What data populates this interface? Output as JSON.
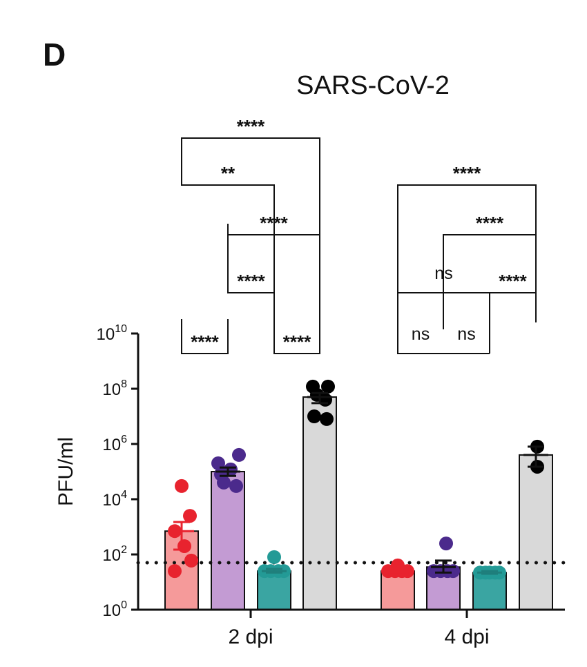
{
  "panel_label": "D",
  "chart_data": {
    "type": "bar",
    "title": "SARS-CoV-2",
    "ylabel": "PFU/ml",
    "xlabel": "",
    "yscale": "log",
    "ylim": [
      1,
      10000000000
    ],
    "y_ticks": [
      {
        "value": 1,
        "base": "10",
        "exp": "0"
      },
      {
        "value": 100,
        "base": "10",
        "exp": "2"
      },
      {
        "value": 10000,
        "base": "10",
        "exp": "4"
      },
      {
        "value": 1000000,
        "base": "10",
        "exp": "6"
      },
      {
        "value": 100000000,
        "base": "10",
        "exp": "8"
      },
      {
        "value": 10000000000,
        "base": "10",
        "exp": "10"
      }
    ],
    "groups": [
      "2 dpi",
      "4 dpi"
    ],
    "limit_of_detection": 50,
    "series_colors": [
      {
        "fill": "#f59a9a",
        "point": "#e8232e"
      },
      {
        "fill": "#c39bd3",
        "point": "#4b2a8c"
      },
      {
        "fill": "#3aa5a2",
        "point": "#239a96"
      },
      {
        "fill": "#d9d9d9",
        "point": "#000000"
      }
    ],
    "bars": [
      {
        "group": 0,
        "series": 0,
        "mean": 700,
        "err_low": 150,
        "err_high": 1500,
        "points": [
          {
            "y": 30000,
            "dx": 0
          },
          {
            "y": 2500,
            "dx": 12
          },
          {
            "y": 700,
            "dx": -10
          },
          {
            "y": 60,
            "dx": 14
          },
          {
            "y": 25,
            "dx": -10
          },
          {
            "y": 200,
            "dx": 4
          }
        ]
      },
      {
        "group": 0,
        "series": 1,
        "mean": 100000,
        "err_low": 70000,
        "err_high": 140000,
        "points": [
          {
            "y": 400000,
            "dx": 16
          },
          {
            "y": 200000,
            "dx": -14
          },
          {
            "y": 120000,
            "dx": 4
          },
          {
            "y": 80000,
            "dx": -10
          },
          {
            "y": 30000,
            "dx": 12
          },
          {
            "y": 40000,
            "dx": -6
          }
        ]
      },
      {
        "group": 0,
        "series": 2,
        "mean": 25,
        "err_low": 22,
        "err_high": 30,
        "points": [
          {
            "y": 80,
            "dx": 0
          },
          {
            "y": 25,
            "dx": -14
          },
          {
            "y": 25,
            "dx": 14
          },
          {
            "y": 25,
            "dx": -5
          },
          {
            "y": 25,
            "dx": 6
          }
        ]
      },
      {
        "group": 0,
        "series": 3,
        "mean": 50000000,
        "err_low": 30000000,
        "err_high": 70000000,
        "points": [
          {
            "y": 120000000,
            "dx": -10
          },
          {
            "y": 120000000,
            "dx": 12
          },
          {
            "y": 60000000,
            "dx": -4
          },
          {
            "y": 40000000,
            "dx": 8
          },
          {
            "y": 10000000,
            "dx": -8
          },
          {
            "y": 8000000,
            "dx": 10
          }
        ]
      },
      {
        "group": 1,
        "series": 0,
        "mean": 25,
        "err_low": 22,
        "err_high": 30,
        "points": [
          {
            "y": 40,
            "dx": 0
          },
          {
            "y": 25,
            "dx": -14
          },
          {
            "y": 25,
            "dx": 14
          },
          {
            "y": 25,
            "dx": -4
          },
          {
            "y": 25,
            "dx": 6
          }
        ]
      },
      {
        "group": 1,
        "series": 1,
        "mean": 35,
        "err_low": 22,
        "err_high": 60,
        "points": [
          {
            "y": 250,
            "dx": 4
          },
          {
            "y": 25,
            "dx": -14
          },
          {
            "y": 25,
            "dx": 14
          },
          {
            "y": 25,
            "dx": -4
          },
          {
            "y": 25,
            "dx": 6
          }
        ]
      },
      {
        "group": 1,
        "series": 2,
        "mean": 22,
        "err_low": 20,
        "err_high": 25,
        "points": [
          {
            "y": 22,
            "dx": -14
          },
          {
            "y": 22,
            "dx": 14
          },
          {
            "y": 22,
            "dx": 0
          },
          {
            "y": 22,
            "dx": -6
          },
          {
            "y": 22,
            "dx": 8
          }
        ]
      },
      {
        "group": 1,
        "series": 3,
        "mean": 400000,
        "err_low": 150000,
        "err_high": 800000,
        "points": [
          {
            "y": 800000,
            "dx": 2
          },
          {
            "y": 150000,
            "dx": 2
          }
        ]
      }
    ],
    "significance": [
      {
        "from": 0,
        "to": 3,
        "label": "****"
      },
      {
        "from": 0,
        "to": 2,
        "label": "**"
      },
      {
        "from": 1,
        "to": 3,
        "label": "****"
      },
      {
        "from": 1,
        "to": 2,
        "label": "****"
      },
      {
        "from": 0,
        "to": 1,
        "label": "****"
      },
      {
        "from": 2,
        "to": 3,
        "label": "****"
      },
      {
        "from": 4,
        "to": 7,
        "label": "****"
      },
      {
        "from": 5,
        "to": 7,
        "label": "****"
      },
      {
        "from": 4,
        "to": 6,
        "label": "ns"
      },
      {
        "from": 6,
        "to": 7,
        "label": "****"
      },
      {
        "from": 4,
        "to": 5,
        "label": "ns"
      },
      {
        "from": 5,
        "to": 6,
        "label": "ns"
      }
    ]
  }
}
